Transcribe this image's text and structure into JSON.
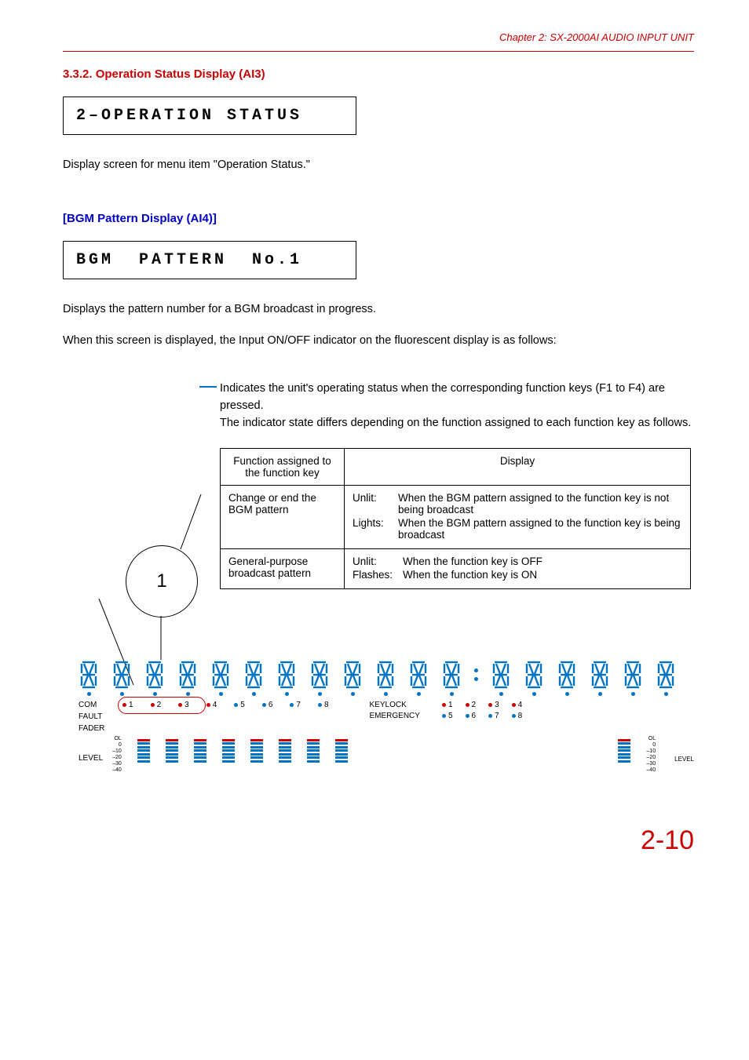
{
  "chapter_label": "Chapter 2: SX-2000AI AUDIO INPUT UNIT",
  "sec_332": "3.3.2. Operation Status Display (AI3)",
  "lcd1": "2–OPERATION STATUS",
  "desc1": "Display screen for menu item \"Operation Status.\"",
  "sub_bgm": "[BGM Pattern Display (AI4)]",
  "lcd2": "BGM  PATTERN  No.1",
  "desc2": "Displays the pattern number for a BGM broadcast in progress.",
  "desc3": "When this screen is displayed, the Input ON/OFF indicator on the fluorescent display is as follows:",
  "callout": {
    "line1": "Indicates the unit's operating status when the corresponding function keys (F1 to F4) are pressed.",
    "line2": "The indicator state differs depending on the function assigned to each function key as follows."
  },
  "table": {
    "th1": "Function assigned to the function key",
    "th2": "Display",
    "r1c1": "Change or end the BGM pattern",
    "r1_unlit_lab": "Unlit:",
    "r1_unlit_txt": "When the BGM pattern assigned to the function key is not being broadcast",
    "r1_lit_lab": "Lights:",
    "r1_lit_txt": "When the BGM pattern assigned to the function key is being broadcast",
    "r2c1": "General-purpose broadcast pattern",
    "r2_unlit_lab": "Unlit:",
    "r2_unlit_txt": "When the function key is OFF",
    "r2_fl_lab": "Flashes:",
    "r2_fl_txt": "When the function key is ON"
  },
  "callout_num": "1",
  "vfd": {
    "com": "COM",
    "fault": "FAULT",
    "fader": "FADER",
    "level": "LEVEL",
    "keylock": "KEYLOCK",
    "emergency": "EMERGENCY",
    "ol": "OL",
    "s0": "0",
    "s10": "–10",
    "s20": "–20",
    "s30": "–30",
    "s40": "–40",
    "nums": [
      "1",
      "2",
      "3",
      "4",
      "5",
      "6",
      "7",
      "8"
    ],
    "quad": [
      "1",
      "2",
      "3",
      "4",
      "5",
      "6",
      "7",
      "8"
    ]
  },
  "page_num": "2-10",
  "colors": {
    "blue": "#0073c4",
    "red": "#c00"
  }
}
